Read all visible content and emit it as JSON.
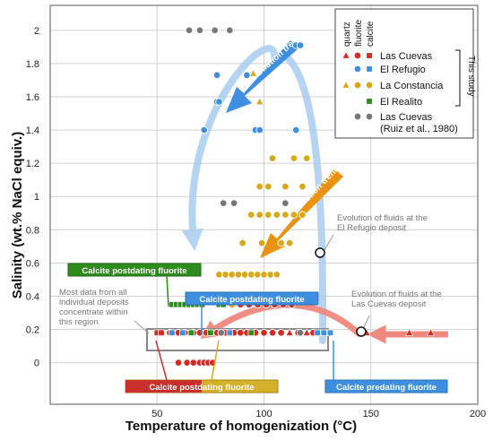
{
  "chart_data": {
    "type": "scatter",
    "xlabel": "Temperature of homogenization (°C)",
    "ylabel": "Salinity (wt.% NaCl equiv.)",
    "xlim": [
      0,
      200
    ],
    "ylim": [
      -0.25,
      2.15
    ],
    "xticks": [
      50,
      100,
      150,
      200
    ],
    "yticks": [
      0,
      0.2,
      0.4,
      0.6,
      0.8,
      1,
      1.2,
      1.4,
      1.6,
      1.8,
      2
    ],
    "grid": true,
    "legend": {
      "position": "top-right",
      "column_headers": [
        "quartz",
        "fluorite",
        "calcite"
      ],
      "entries": [
        "Las Cuevas",
        "El Refugio",
        "La Constancia",
        "El Realito",
        "Las Cuevas",
        "(Ruiz et al., 1980)"
      ],
      "bracket_label": "This study"
    },
    "colors": {
      "las_cuevas": "#d42a22",
      "el_refugio": "#3f8fe0",
      "la_constancia": "#d9a818",
      "el_realito": "#2e8b1e",
      "ruiz": "#777777",
      "trend_blue": "#a9cdf0",
      "trend_orange": "#e8920e",
      "trend_red": "#f08880"
    },
    "series": [
      {
        "name": "Las Cuevas",
        "points": [
          {
            "x": 50,
            "y": 0.18,
            "shape": "square"
          },
          {
            "x": 52,
            "y": 0.18,
            "shape": "square"
          },
          {
            "x": 56,
            "y": 0.18,
            "shape": "circle"
          },
          {
            "x": 60,
            "y": 0.18,
            "shape": "circle"
          },
          {
            "x": 63,
            "y": 0.18,
            "shape": "circle"
          },
          {
            "x": 67,
            "y": 0.18,
            "shape": "circle"
          },
          {
            "x": 70,
            "y": 0.18,
            "shape": "circle"
          },
          {
            "x": 73,
            "y": 0.18,
            "shape": "circle"
          },
          {
            "x": 78,
            "y": 0.18,
            "shape": "circle"
          },
          {
            "x": 82,
            "y": 0.18,
            "shape": "circle"
          },
          {
            "x": 86,
            "y": 0.18,
            "shape": "circle"
          },
          {
            "x": 89,
            "y": 0.18,
            "shape": "circle"
          },
          {
            "x": 92,
            "y": 0.18,
            "shape": "circle"
          },
          {
            "x": 96,
            "y": 0.18,
            "shape": "circle"
          },
          {
            "x": 100,
            "y": 0.18,
            "shape": "circle"
          },
          {
            "x": 104,
            "y": 0.18,
            "shape": "circle"
          },
          {
            "x": 108,
            "y": 0.18,
            "shape": "circle"
          },
          {
            "x": 112,
            "y": 0.18,
            "shape": "triangle"
          },
          {
            "x": 116,
            "y": 0.18,
            "shape": "circle"
          },
          {
            "x": 120,
            "y": 0.18,
            "shape": "triangle"
          },
          {
            "x": 123,
            "y": 0.18,
            "shape": "circle"
          },
          {
            "x": 148,
            "y": 0.18,
            "shape": "triangle"
          },
          {
            "x": 168,
            "y": 0.18,
            "shape": "triangle"
          },
          {
            "x": 178,
            "y": 0.18,
            "shape": "triangle"
          },
          {
            "x": 60,
            "y": 0,
            "shape": "circle"
          },
          {
            "x": 64,
            "y": 0,
            "shape": "circle"
          },
          {
            "x": 67,
            "y": 0,
            "shape": "circle"
          },
          {
            "x": 70,
            "y": 0,
            "shape": "circle"
          },
          {
            "x": 72,
            "y": 0,
            "shape": "circle"
          },
          {
            "x": 74,
            "y": 0,
            "shape": "circle"
          },
          {
            "x": 76,
            "y": 0,
            "shape": "circle"
          },
          {
            "x": 89,
            "y": 0.35,
            "shape": "circle"
          },
          {
            "x": 93,
            "y": 0.35,
            "shape": "circle"
          },
          {
            "x": 97,
            "y": 0.35,
            "shape": "circle"
          },
          {
            "x": 101,
            "y": 0.35,
            "shape": "circle"
          },
          {
            "x": 105,
            "y": 0.35,
            "shape": "circle"
          },
          {
            "x": 109,
            "y": 0.35,
            "shape": "circle"
          },
          {
            "x": 113,
            "y": 0.35,
            "shape": "circle"
          }
        ]
      },
      {
        "name": "El Refugio",
        "points": [
          {
            "x": 115,
            "y": 1.91,
            "shape": "circle"
          },
          {
            "x": 117,
            "y": 1.91,
            "shape": "circle"
          },
          {
            "x": 78,
            "y": 1.73,
            "shape": "circle"
          },
          {
            "x": 92,
            "y": 1.73,
            "shape": "circle"
          },
          {
            "x": 78,
            "y": 1.57,
            "shape": "circle"
          },
          {
            "x": 79,
            "y": 1.57,
            "shape": "circle"
          },
          {
            "x": 72,
            "y": 1.4,
            "shape": "circle"
          },
          {
            "x": 96,
            "y": 1.4,
            "shape": "circle"
          },
          {
            "x": 98,
            "y": 1.4,
            "shape": "circle"
          },
          {
            "x": 115,
            "y": 1.4,
            "shape": "circle"
          },
          {
            "x": 57,
            "y": 0.18,
            "shape": "square"
          },
          {
            "x": 62,
            "y": 0.18,
            "shape": "square"
          },
          {
            "x": 84,
            "y": 0.18,
            "shape": "square"
          },
          {
            "x": 125,
            "y": 0.18,
            "shape": "square"
          },
          {
            "x": 128,
            "y": 0.18,
            "shape": "square"
          },
          {
            "x": 131,
            "y": 0.18,
            "shape": "square"
          }
        ]
      },
      {
        "name": "La Constancia",
        "points": [
          {
            "x": 95,
            "y": 1.74,
            "shape": "triangle"
          },
          {
            "x": 98,
            "y": 1.57,
            "shape": "triangle"
          },
          {
            "x": 104,
            "y": 1.23,
            "shape": "circle"
          },
          {
            "x": 114,
            "y": 1.23,
            "shape": "circle"
          },
          {
            "x": 120,
            "y": 1.23,
            "shape": "circle"
          },
          {
            "x": 98,
            "y": 1.06,
            "shape": "circle"
          },
          {
            "x": 102,
            "y": 1.06,
            "shape": "circle"
          },
          {
            "x": 110,
            "y": 1.06,
            "shape": "circle"
          },
          {
            "x": 118,
            "y": 1.06,
            "shape": "circle"
          },
          {
            "x": 94,
            "y": 0.89,
            "shape": "circle"
          },
          {
            "x": 98,
            "y": 0.89,
            "shape": "circle"
          },
          {
            "x": 102,
            "y": 0.89,
            "shape": "circle"
          },
          {
            "x": 106,
            "y": 0.89,
            "shape": "circle"
          },
          {
            "x": 110,
            "y": 0.89,
            "shape": "circle"
          },
          {
            "x": 114,
            "y": 0.89,
            "shape": "circle"
          },
          {
            "x": 118,
            "y": 0.89,
            "shape": "circle"
          },
          {
            "x": 90,
            "y": 0.72,
            "shape": "circle"
          },
          {
            "x": 99,
            "y": 0.72,
            "shape": "circle"
          },
          {
            "x": 108,
            "y": 0.72,
            "shape": "circle"
          },
          {
            "x": 112,
            "y": 0.72,
            "shape": "circle"
          },
          {
            "x": 79,
            "y": 0.53,
            "shape": "circle"
          },
          {
            "x": 82,
            "y": 0.53,
            "shape": "circle"
          },
          {
            "x": 85,
            "y": 0.53,
            "shape": "circle"
          },
          {
            "x": 88,
            "y": 0.53,
            "shape": "circle"
          },
          {
            "x": 91,
            "y": 0.53,
            "shape": "circle"
          },
          {
            "x": 94,
            "y": 0.53,
            "shape": "circle"
          },
          {
            "x": 97,
            "y": 0.53,
            "shape": "circle"
          },
          {
            "x": 100,
            "y": 0.53,
            "shape": "circle"
          },
          {
            "x": 103,
            "y": 0.53,
            "shape": "circle"
          },
          {
            "x": 106,
            "y": 0.53,
            "shape": "circle"
          },
          {
            "x": 85,
            "y": 0.35,
            "shape": "circle"
          }
        ]
      },
      {
        "name": "El Realito",
        "points": [
          {
            "x": 57,
            "y": 0.35,
            "shape": "square"
          },
          {
            "x": 59,
            "y": 0.35,
            "shape": "square"
          },
          {
            "x": 61,
            "y": 0.35,
            "shape": "square"
          },
          {
            "x": 63,
            "y": 0.35,
            "shape": "square"
          },
          {
            "x": 65,
            "y": 0.35,
            "shape": "square"
          },
          {
            "x": 67,
            "y": 0.35,
            "shape": "square"
          },
          {
            "x": 69,
            "y": 0.35,
            "shape": "square"
          },
          {
            "x": 71,
            "y": 0.35,
            "shape": "square"
          },
          {
            "x": 79,
            "y": 0.35,
            "shape": "square"
          },
          {
            "x": 81,
            "y": 0.35,
            "shape": "square"
          },
          {
            "x": 66,
            "y": 0.18,
            "shape": "square"
          },
          {
            "x": 75,
            "y": 0.18,
            "shape": "square"
          },
          {
            "x": 94,
            "y": 0.18,
            "shape": "square"
          }
        ]
      },
      {
        "name": "Las Cuevas (Ruiz et al., 1980)",
        "points": [
          {
            "x": 65,
            "y": 2,
            "shape": "circle"
          },
          {
            "x": 70,
            "y": 2,
            "shape": "circle"
          },
          {
            "x": 77,
            "y": 2,
            "shape": "circle"
          },
          {
            "x": 84,
            "y": 2,
            "shape": "circle"
          },
          {
            "x": 81,
            "y": 0.96,
            "shape": "circle"
          },
          {
            "x": 86,
            "y": 0.96,
            "shape": "circle"
          },
          {
            "x": 110,
            "y": 0.96,
            "shape": "circle"
          },
          {
            "x": 80,
            "y": 0.18,
            "shape": "circle"
          },
          {
            "x": 117,
            "y": 0.18,
            "shape": "circle"
          }
        ]
      }
    ],
    "annotations": {
      "dilution_trend": "Dilution trend",
      "evolution_refugio": [
        "Evolution of fluids at the",
        "El Refugio deposit"
      ],
      "evolution_cuevas": [
        "Evolution of fluids at the",
        "Las Cuevas deposit"
      ],
      "most_data": [
        "Most data from all",
        "individual deposits",
        "concentrate within",
        "this region"
      ],
      "calcite_post_1": "Calcite postdating fluorite",
      "calcite_post_2": "Calcite postdating fluorite",
      "calcite_post_3": "Calcite postdating fluorite",
      "calcite_pre": "Calcite predating fluorite"
    }
  }
}
